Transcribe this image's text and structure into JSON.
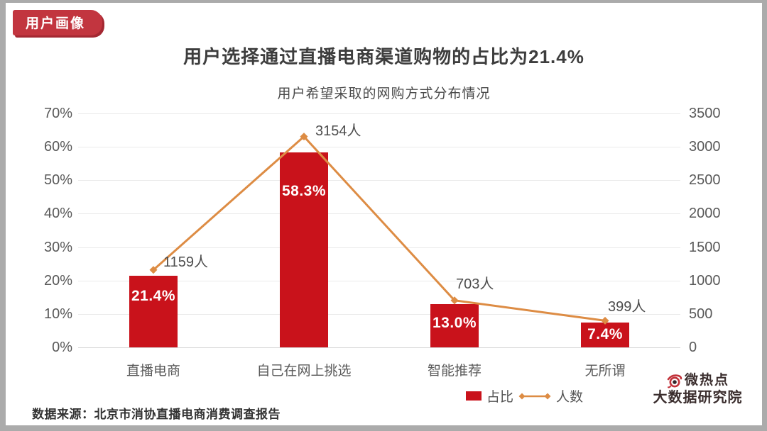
{
  "page": {
    "badge": "用户画像",
    "title": "用户选择通过直播电商渠道购物的占比为21.4%",
    "subtitle": "用户希望采取的网购方式分布情况",
    "source": "数据来源：北京市消协直播电商消费调查报告",
    "logo": {
      "line1": "微热点",
      "line2": "大数据研究院"
    }
  },
  "colors": {
    "bar": "#C9121B",
    "line": "#DD8C44",
    "badge": "#C2353F",
    "badge_shadow": "#A42832",
    "grid": "#EAEAEA",
    "logo_red": "#C2323A"
  },
  "chart_data": {
    "type": "bar",
    "subtype": "bar+line combo, dual axis",
    "title": "用户希望采取的网购方式分布情况",
    "categories": [
      "直播电商",
      "自己在网上挑选",
      "智能推荐",
      "无所谓"
    ],
    "series": [
      {
        "name": "占比",
        "type": "bar",
        "axis": "left",
        "unit": "%",
        "values": [
          21.4,
          58.3,
          13.0,
          7.4
        ],
        "labels": [
          "21.4%",
          "58.3%",
          "13.0%",
          "7.4%"
        ]
      },
      {
        "name": "人数",
        "type": "line",
        "axis": "right",
        "unit": "人",
        "values": [
          1159,
          3154,
          703,
          399
        ],
        "labels": [
          "1159人",
          "3154人",
          "703人",
          "399人"
        ]
      }
    ],
    "left_axis": {
      "min": 0,
      "max": 70,
      "ticks": [
        "0%",
        "10%",
        "20%",
        "30%",
        "40%",
        "50%",
        "60%",
        "70%"
      ]
    },
    "right_axis": {
      "min": 0,
      "max": 3500,
      "ticks": [
        "0",
        "500",
        "1000",
        "1500",
        "2000",
        "2500",
        "3000",
        "3500"
      ]
    },
    "legend": [
      {
        "label": "占比"
      },
      {
        "label": "人数"
      }
    ],
    "grid": true,
    "legend_position": "bottom"
  }
}
